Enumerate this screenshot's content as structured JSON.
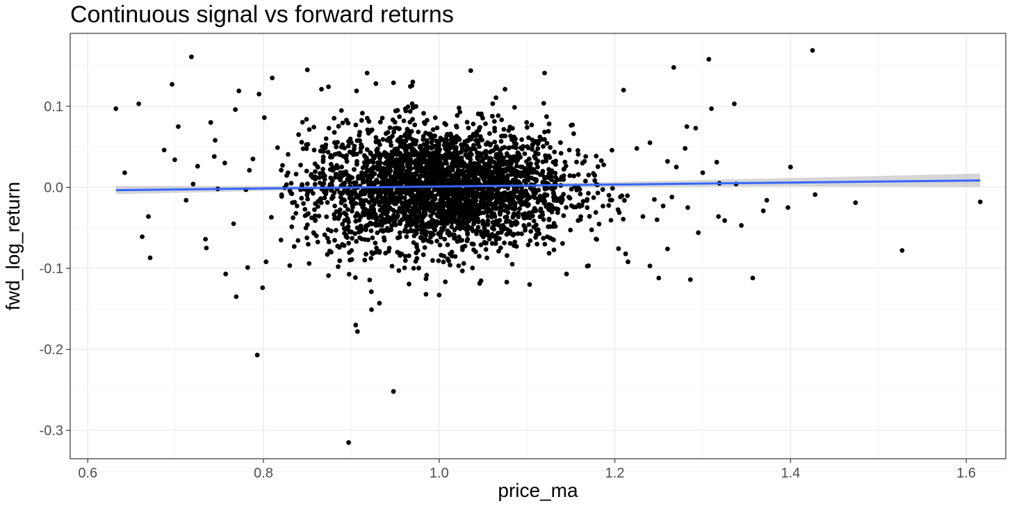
{
  "chart_data": {
    "type": "scatter",
    "title": "Continuous signal vs forward returns",
    "xlabel": "price_ma",
    "ylabel": "fwd_log_return",
    "xlim": [
      0.58,
      1.645
    ],
    "ylim": [
      -0.335,
      0.19
    ],
    "x_ticks": [
      0.6,
      0.8,
      1.0,
      1.2,
      1.4,
      1.6
    ],
    "x_tick_labels": [
      "0.6",
      "0.8",
      "1.0",
      "1.2",
      "1.4",
      "1.6"
    ],
    "y_ticks": [
      -0.3,
      -0.2,
      -0.1,
      0.0,
      0.1
    ],
    "y_tick_labels": [
      "-0.3",
      "-0.2",
      "-0.1",
      "0.0",
      "0.1"
    ],
    "grid": true,
    "legend": "none",
    "colors": {
      "points": "#000000",
      "fit_line": "#3366FF",
      "confidence_band": "#999999",
      "grid_major": "#ebebeb",
      "grid_minor": "#f3f3f3",
      "panel_border": "#333333"
    },
    "points": [
      {
        "x": 0.632,
        "y": 0.097
      },
      {
        "x": 0.642,
        "y": 0.018
      },
      {
        "x": 0.658,
        "y": 0.103
      },
      {
        "x": 0.662,
        "y": -0.061
      },
      {
        "x": 0.669,
        "y": -0.036
      },
      {
        "x": 0.671,
        "y": -0.087
      },
      {
        "x": 0.687,
        "y": 0.046
      },
      {
        "x": 0.696,
        "y": 0.127
      },
      {
        "x": 0.699,
        "y": 0.034
      },
      {
        "x": 0.703,
        "y": 0.075
      },
      {
        "x": 0.712,
        "y": -0.016
      },
      {
        "x": 0.718,
        "y": 0.161
      },
      {
        "x": 0.72,
        "y": 0.004
      },
      {
        "x": 0.725,
        "y": 0.026
      },
      {
        "x": 0.734,
        "y": -0.064
      },
      {
        "x": 0.735,
        "y": -0.075
      },
      {
        "x": 0.74,
        "y": 0.08
      },
      {
        "x": 0.744,
        "y": 0.038
      },
      {
        "x": 0.745,
        "y": 0.058
      },
      {
        "x": 0.748,
        "y": -0.002
      },
      {
        "x": 0.756,
        "y": 0.03
      },
      {
        "x": 0.757,
        "y": -0.107
      },
      {
        "x": 0.766,
        "y": -0.045
      },
      {
        "x": 0.768,
        "y": 0.096
      },
      {
        "x": 0.769,
        "y": -0.135
      },
      {
        "x": 0.772,
        "y": 0.119
      },
      {
        "x": 0.78,
        "y": -0.003
      },
      {
        "x": 0.782,
        "y": -0.099
      },
      {
        "x": 0.784,
        "y": 0.021
      },
      {
        "x": 0.788,
        "y": 0.035
      },
      {
        "x": 0.793,
        "y": -0.207
      },
      {
        "x": 0.795,
        "y": 0.115
      },
      {
        "x": 0.799,
        "y": -0.124
      },
      {
        "x": 0.801,
        "y": 0.086
      },
      {
        "x": 0.803,
        "y": -0.092
      },
      {
        "x": 0.809,
        "y": -0.037
      },
      {
        "x": 0.81,
        "y": 0.135
      },
      {
        "x": 0.816,
        "y": 0.049
      },
      {
        "x": 0.82,
        "y": -0.065
      },
      {
        "x": 0.828,
        "y": 0.018
      },
      {
        "x": 0.835,
        "y": -0.073
      },
      {
        "x": 0.84,
        "y": 0.065
      },
      {
        "x": 0.85,
        "y": 0.145
      },
      {
        "x": 0.852,
        "y": -0.094
      },
      {
        "x": 0.866,
        "y": 0.121
      },
      {
        "x": 0.874,
        "y": 0.124
      },
      {
        "x": 0.874,
        "y": -0.109
      },
      {
        "x": 0.885,
        "y": -0.098
      },
      {
        "x": 0.897,
        "y": -0.315
      },
      {
        "x": 0.905,
        "y": -0.17
      },
      {
        "x": 0.906,
        "y": 0.119
      },
      {
        "x": 0.907,
        "y": -0.178
      },
      {
        "x": 0.918,
        "y": 0.141
      },
      {
        "x": 0.923,
        "y": -0.151
      },
      {
        "x": 0.928,
        "y": 0.128
      },
      {
        "x": 0.932,
        "y": -0.143
      },
      {
        "x": 0.948,
        "y": 0.129
      },
      {
        "x": 0.948,
        "y": -0.252
      },
      {
        "x": 0.97,
        "y": 0.13
      },
      {
        "x": 0.985,
        "y": -0.132
      },
      {
        "x": 1.0,
        "y": -0.133
      },
      {
        "x": 1.036,
        "y": 0.144
      },
      {
        "x": 1.075,
        "y": 0.121
      },
      {
        "x": 1.077,
        "y": -0.117
      },
      {
        "x": 1.103,
        "y": -0.12
      },
      {
        "x": 1.12,
        "y": 0.141
      },
      {
        "x": 1.145,
        "y": -0.107
      },
      {
        "x": 1.21,
        "y": 0.12
      },
      {
        "x": 1.215,
        "y": -0.092
      },
      {
        "x": 1.24,
        "y": -0.097
      },
      {
        "x": 1.25,
        "y": -0.112
      },
      {
        "x": 1.26,
        "y": -0.076
      },
      {
        "x": 1.267,
        "y": 0.148
      },
      {
        "x": 1.282,
        "y": 0.075
      },
      {
        "x": 1.286,
        "y": -0.114
      },
      {
        "x": 1.292,
        "y": 0.073
      },
      {
        "x": 1.295,
        "y": -0.056
      },
      {
        "x": 1.307,
        "y": 0.158
      },
      {
        "x": 1.31,
        "y": 0.097
      },
      {
        "x": 1.316,
        "y": 0.031
      },
      {
        "x": 1.318,
        "y": -0.036
      },
      {
        "x": 1.325,
        "y": -0.041
      },
      {
        "x": 1.336,
        "y": 0.103
      },
      {
        "x": 1.344,
        "y": -0.047
      },
      {
        "x": 1.357,
        "y": -0.112
      },
      {
        "x": 1.369,
        "y": -0.029
      },
      {
        "x": 1.373,
        "y": -0.016
      },
      {
        "x": 1.397,
        "y": -0.025
      },
      {
        "x": 1.4,
        "y": 0.025
      },
      {
        "x": 1.425,
        "y": 0.169
      },
      {
        "x": 1.428,
        "y": -0.009
      },
      {
        "x": 1.474,
        "y": -0.019
      },
      {
        "x": 1.527,
        "y": -0.078
      },
      {
        "x": 1.616,
        "y": -0.018
      },
      {
        "x": 1.225,
        "y": 0.048
      },
      {
        "x": 1.24,
        "y": 0.055
      },
      {
        "x": 1.26,
        "y": 0.032
      },
      {
        "x": 1.27,
        "y": 0.025
      },
      {
        "x": 1.28,
        "y": 0.048
      },
      {
        "x": 1.245,
        "y": -0.015
      },
      {
        "x": 1.255,
        "y": -0.023
      },
      {
        "x": 1.232,
        "y": -0.036
      },
      {
        "x": 1.248,
        "y": -0.04
      },
      {
        "x": 1.265,
        "y": -0.012
      },
      {
        "x": 1.283,
        "y": -0.025
      },
      {
        "x": 1.3,
        "y": 0.018
      },
      {
        "x": 1.319,
        "y": 0.005
      },
      {
        "x": 1.338,
        "y": 0.004
      }
    ],
    "cluster_summary": {
      "center_x": 1.0,
      "center_y": 0.0,
      "approx_count": 3000
    },
    "fit_line": {
      "method": "linear",
      "x_start": 0.632,
      "y_start": -0.0035,
      "x_end": 1.616,
      "y_end": 0.0085
    },
    "confidence_band": [
      {
        "x": 0.632,
        "lower": -0.0085,
        "upper": 0.0015
      },
      {
        "x": 0.8,
        "lower": -0.0045,
        "upper": 0.0016
      },
      {
        "x": 1.0,
        "lower": -0.0012,
        "upper": 0.0032
      },
      {
        "x": 1.2,
        "lower": 0.0003,
        "upper": 0.0066
      },
      {
        "x": 1.4,
        "lower": 0.001,
        "upper": 0.0115
      },
      {
        "x": 1.616,
        "lower": 0.0005,
        "upper": 0.017
      }
    ]
  }
}
